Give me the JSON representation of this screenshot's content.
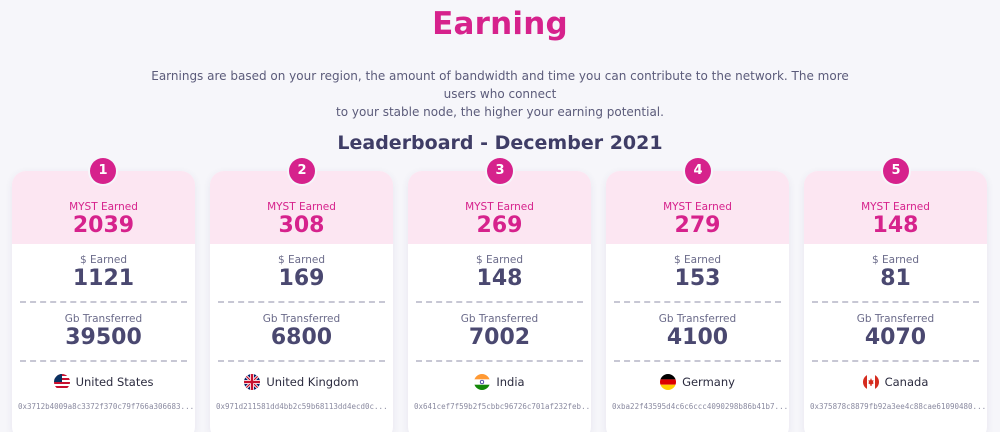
{
  "page": {
    "title": "Earning",
    "description_line1": "Earnings are based on your region, the amount of bandwidth and time you can contribute to the network. The more users who connect",
    "description_line2": "to your stable node, the higher your earning potential."
  },
  "leaderboard": {
    "title": "Leaderboard - December 2021",
    "labels": {
      "myst": "MYST Earned",
      "usd": "$ Earned",
      "gb": "Gb Transferred"
    },
    "cards": [
      {
        "rank": "1",
        "myst": "2039",
        "usd": "1121",
        "gb": "39500",
        "country": "United States",
        "flag": "us-flag-icon",
        "address": "0x3712b4009a8c3372f370c79f766a306683..."
      },
      {
        "rank": "2",
        "myst": "308",
        "usd": "169",
        "gb": "6800",
        "country": "United Kingdom",
        "flag": "uk-flag-icon",
        "address": "0x971d211581dd4bb2c59b68113dd4ecd0c..."
      },
      {
        "rank": "3",
        "myst": "269",
        "usd": "148",
        "gb": "7002",
        "country": "India",
        "flag": "india-flag-icon",
        "address": "0x641cef7f59b2f5cbbc96726c701af232feb..."
      },
      {
        "rank": "4",
        "myst": "279",
        "usd": "153",
        "gb": "4100",
        "country": "Germany",
        "flag": "germany-flag-icon",
        "address": "0xba22f43595d4c6c6ccc4090298b86b41b7..."
      },
      {
        "rank": "5",
        "myst": "148",
        "usd": "81",
        "gb": "4070",
        "country": "Canada",
        "flag": "canada-flag-icon",
        "address": "0x375878c8879fb92a3ee4c88cae61090480..."
      }
    ]
  },
  "colors": {
    "accent": "#d6228c",
    "card_top": "#fce6f2",
    "text_dark": "#3f3d66",
    "background": "#f6f6fa"
  }
}
